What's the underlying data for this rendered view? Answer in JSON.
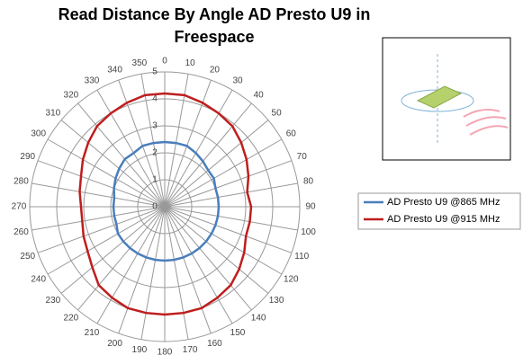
{
  "chart_data": {
    "type": "radar",
    "title": "Read Distance By Angle AD Presto U9 in Freespace",
    "categories": [
      "0",
      "10",
      "20",
      "30",
      "40",
      "50",
      "60",
      "70",
      "80",
      "90",
      "100",
      "110",
      "120",
      "130",
      "140",
      "150",
      "160",
      "170",
      "180",
      "190",
      "200",
      "210",
      "220",
      "230",
      "240",
      "250",
      "260",
      "270",
      "280",
      "290",
      "300",
      "310",
      "320",
      "330",
      "340",
      "350"
    ],
    "rlim": [
      0,
      5
    ],
    "rticks": [
      0,
      1,
      2,
      3,
      4,
      5
    ],
    "grid": true,
    "legend": "right",
    "series": [
      {
        "name": "AD Presto U9 @865 MHz",
        "color": "#4a7ebb",
        "values": [
          2.4,
          2.4,
          2.4,
          2.3,
          2.2,
          2.1,
          2.1,
          2.0,
          2.0,
          2.0,
          2.0,
          2.0,
          2.0,
          2.0,
          2.0,
          2.0,
          2.0,
          2.0,
          2.0,
          2.0,
          2.0,
          2.0,
          2.0,
          2.0,
          2.0,
          1.9,
          1.9,
          1.9,
          1.9,
          2.0,
          2.1,
          2.2,
          2.3,
          2.3,
          2.4,
          2.4
        ]
      },
      {
        "name": "AD Presto U9 @915 MHz",
        "color": "#be1e1e",
        "values": [
          4.2,
          4.2,
          4.1,
          4.0,
          3.9,
          3.7,
          3.5,
          3.3,
          3.1,
          3.2,
          3.2,
          3.2,
          3.4,
          3.6,
          3.8,
          3.9,
          4.0,
          4.0,
          4.0,
          4.0,
          4.0,
          3.9,
          3.8,
          3.5,
          3.3,
          3.2,
          3.1,
          3.1,
          3.2,
          3.3,
          3.5,
          3.7,
          3.9,
          4.0,
          4.1,
          4.2
        ]
      }
    ]
  }
}
